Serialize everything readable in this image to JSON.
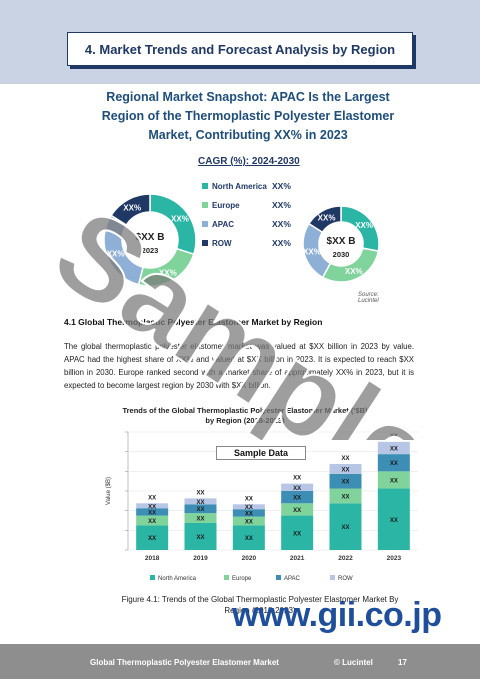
{
  "header": {
    "title": "4. Market Trends and Forecast Analysis by Region"
  },
  "snapshot": {
    "title": "Regional Market Snapshot: APAC Is the Largest Region of the Thermoplastic Polyester Elastomer Market, Contributing XX% in 2023",
    "cagr_title": "CAGR (%): 2024-2030",
    "legend": [
      {
        "name": "North America",
        "value": "XX%",
        "color": "#2bb5a5"
      },
      {
        "name": "Europe",
        "value": "XX%",
        "color": "#7fd39b"
      },
      {
        "name": "APAC",
        "value": "XX%",
        "color": "#8fb0d6"
      },
      {
        "name": "ROW",
        "value": "XX%",
        "color": "#1f3864"
      }
    ],
    "donut_left": {
      "center_label": "$XX B",
      "year_label": "2023",
      "slice_labels": [
        "XX%",
        "XX%",
        "XX%",
        "XX%"
      ]
    },
    "donut_right": {
      "center_label": "$XX B",
      "year_label": "2030",
      "slice_labels": [
        "XX%",
        "XX%",
        "XX%",
        "XX%"
      ]
    },
    "source": "Source: Lucintel"
  },
  "section": {
    "heading": "4.1 Global Thermoplastic Polyester Elastomer Market by Region",
    "paragraph": "The global thermoplastic polyester elastomer market was valued at $XX billion in 2023 by value. APAC had the highest share of XX% and valued at $XX billion in 2023. It is expected to reach $XX billion in 2030. Europe ranked second with a market share of approximately XX% in 2023, but it is expected to become largest region by 2030 with $XX billion."
  },
  "chart_data": {
    "type": "bar",
    "title": "Trends of the Global Thermoplastic Polyester Elastomer Market (‘$B) by Region (2018-2023)",
    "ylabel": "Value ($B)",
    "categories": [
      "2018",
      "2019",
      "2020",
      "2021",
      "2022",
      "2023"
    ],
    "series": [
      {
        "name": "North America",
        "color": "#2bb5a5",
        "values": [
          5,
          5.5,
          5,
          7,
          9.5,
          12.5
        ],
        "labels": [
          "XX",
          "XX",
          "XX",
          "XX",
          "XX",
          "XX"
        ]
      },
      {
        "name": "Europe",
        "color": "#7fd39b",
        "values": [
          2,
          2,
          1.8,
          2.5,
          3,
          3.5
        ],
        "labels": [
          "XX",
          "XX",
          "XX",
          "XX",
          "XX",
          "XX"
        ]
      },
      {
        "name": "APAC",
        "color": "#3d8eb5",
        "values": [
          1.5,
          1.8,
          1.5,
          2.5,
          3,
          3.5
        ],
        "labels": [
          "XX",
          "XX",
          "XX",
          "XX",
          "XX",
          "XX"
        ]
      },
      {
        "name": "ROW",
        "color": "#b8c6e6",
        "values": [
          1,
          1.2,
          1,
          1.5,
          2,
          2.5
        ],
        "labels": [
          "XX",
          "XX",
          "XX",
          "XX",
          "XX",
          "XX"
        ]
      }
    ],
    "total_labels": [
      "XX",
      "XX",
      "XX",
      "XX",
      "XX",
      "XX"
    ],
    "legend_position": "bottom",
    "sample_label": "Sample Data"
  },
  "figure_caption": "Figure 4.1: Trends of the Global Thermoplastic Polyester Elastomer Market By Region (2018-2023)",
  "watermark": {
    "text": "Sample",
    "url": "www.gii.co.jp"
  },
  "footer": {
    "left": "Global Thermoplastic Polyester Elastomer Market",
    "center": "© Lucintel",
    "page": "17"
  }
}
